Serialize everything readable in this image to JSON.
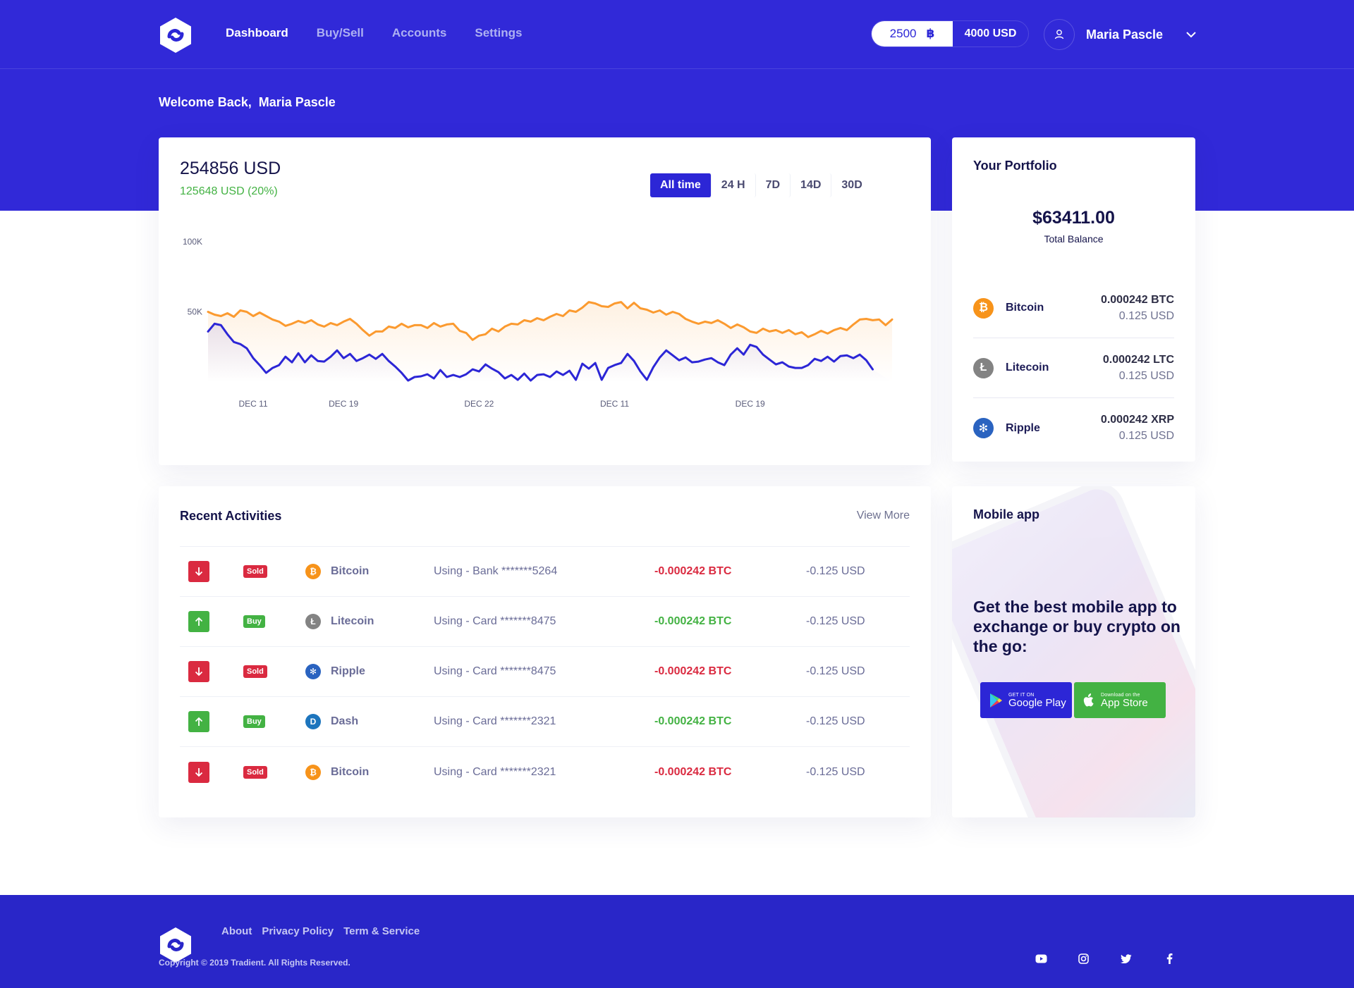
{
  "nav": {
    "items": [
      {
        "label": "Dashboard",
        "active": true
      },
      {
        "label": "Buy/Sell"
      },
      {
        "label": "Accounts"
      },
      {
        "label": "Settings"
      }
    ]
  },
  "balance": {
    "amount": "2500",
    "currency_symbol": "฿",
    "usd": "4000 USD"
  },
  "user": {
    "name": "Maria Pascle"
  },
  "welcome": {
    "greeting": "Welcome Back,",
    "name": "Maria Pascle"
  },
  "chart_card": {
    "total": "254856 USD",
    "change": "125648 USD (20%)",
    "ranges": [
      "All time",
      "24 H",
      "7D",
      "14D",
      "30D"
    ],
    "active_range": "All time"
  },
  "chart_data": {
    "type": "area",
    "yticks": [
      "100K",
      "50K"
    ],
    "ytick_values": [
      100000,
      50000
    ],
    "ylim": [
      0,
      100000
    ],
    "xticks": [
      "DEC 11",
      "DEC 19",
      "DEC 22",
      "DEC 11",
      "DEC 19"
    ],
    "xtick_index": [
      7,
      21,
      42,
      63,
      84
    ],
    "series": [
      {
        "color": "#fb9a2f",
        "fill": true,
        "values": [
          50000,
          48000,
          47000,
          49000,
          46500,
          51000,
          50000,
          47000,
          49500,
          47000,
          44500,
          43000,
          40000,
          41500,
          43500,
          42000,
          44000,
          41000,
          39500,
          42000,
          40500,
          43000,
          45000,
          41500,
          37000,
          33000,
          36000,
          36000,
          39500,
          38500,
          41500,
          39000,
          40500,
          40500,
          38500,
          42000,
          39500,
          41000,
          41500,
          36500,
          35000,
          30000,
          33000,
          34000,
          38000,
          36000,
          39500,
          41500,
          41000,
          44000,
          43000,
          45500,
          44000,
          46500,
          48500,
          47000,
          51000,
          50000,
          53000,
          57000,
          56000,
          54000,
          53500,
          56000,
          57000,
          52500,
          56500,
          52500,
          51500,
          49500,
          51000,
          48000,
          50000,
          48500,
          45000,
          43000,
          41500,
          43000,
          42000,
          44000,
          41500,
          38500,
          41000,
          39000,
          36000,
          35000,
          38000,
          36000,
          37000,
          35000,
          37000,
          34000,
          35500,
          32000,
          34000,
          36500,
          34500,
          37000,
          38500,
          37000,
          41000,
          44500,
          45000,
          44000,
          44500,
          40500,
          44500
        ]
      },
      {
        "color": "#2c26d6",
        "fill": true,
        "values": [
          36000,
          41500,
          40500,
          34000,
          28500,
          27000,
          24000,
          17000,
          12000,
          6500,
          10000,
          12000,
          18000,
          14000,
          20500,
          14000,
          19000,
          15000,
          14500,
          18000,
          22500,
          17000,
          20000,
          15000,
          17000,
          19500,
          16500,
          20000,
          15000,
          11000,
          6500,
          1000,
          3500,
          4000,
          5500,
          2500,
          8500,
          3500,
          5000,
          3500,
          5500,
          9000,
          7500,
          12500,
          9500,
          7000,
          2500,
          5000,
          1500,
          6000,
          1000,
          5000,
          5500,
          3500,
          7500,
          5000,
          8000,
          1500,
          13000,
          9500,
          13500,
          1500,
          10000,
          12000,
          13500,
          20000,
          15000,
          7500,
          1500,
          10500,
          17500,
          22500,
          19000,
          15500,
          17500,
          14000,
          14500,
          16000,
          17000,
          14000,
          12000,
          19500,
          24000,
          19500,
          26500,
          25000,
          19500,
          16000,
          12500,
          14000,
          11000,
          10000,
          10000,
          12000,
          16500,
          15000,
          18000,
          14500,
          18500,
          19000,
          17000,
          19500,
          15500,
          9000
        ]
      }
    ]
  },
  "portfolio": {
    "title": "Your Portfolio",
    "balance": "$63411.00",
    "balance_label": "Total Balance",
    "assets": [
      {
        "name": "Bitcoin",
        "amount": "0.000242 BTC",
        "usd": "0.125 USD",
        "icon": "bitcoin-icon",
        "color": "#f7931a",
        "glyph": "₿"
      },
      {
        "name": "Litecoin",
        "amount": "0.000242 LTC",
        "usd": "0.125 USD",
        "icon": "litecoin-icon",
        "color": "#838383",
        "glyph": "Ł"
      },
      {
        "name": "Ripple",
        "amount": "0.000242 XRP",
        "usd": "0.125 USD",
        "icon": "ripple-icon",
        "color": "#2a63c0",
        "glyph": "✻"
      }
    ]
  },
  "activities": {
    "title": "Recent Activities",
    "view_more": "View More",
    "rows": [
      {
        "direction": "down",
        "type": "Sold",
        "coin": "Bitcoin",
        "via": "Using - Bank *******5264",
        "amount": "-0.000242 BTC",
        "usd": "-0.125 USD",
        "coin_color": "#f7931a",
        "glyph": "₿",
        "amount_color": "red"
      },
      {
        "direction": "up",
        "type": "Buy",
        "coin": "Litecoin",
        "via": "Using - Card *******8475",
        "amount": "-0.000242 BTC",
        "usd": "-0.125 USD",
        "coin_color": "#838383",
        "glyph": "Ł",
        "amount_color": "green"
      },
      {
        "direction": "down",
        "type": "Sold",
        "coin": "Ripple",
        "via": "Using - Card *******8475",
        "amount": "-0.000242 BTC",
        "usd": "-0.125 USD",
        "coin_color": "#2a63c0",
        "glyph": "✻",
        "amount_color": "red"
      },
      {
        "direction": "up",
        "type": "Buy",
        "coin": "Dash",
        "via": "Using - Card *******2321",
        "amount": "-0.000242 BTC",
        "usd": "-0.125 USD",
        "coin_color": "#1d75bd",
        "glyph": "D",
        "amount_color": "green"
      },
      {
        "direction": "down",
        "type": "Sold",
        "coin": "Bitcoin",
        "via": "Using - Card *******2321",
        "amount": "-0.000242 BTC",
        "usd": "-0.125 USD",
        "coin_color": "#f7931a",
        "glyph": "₿",
        "amount_color": "red"
      }
    ]
  },
  "mobile": {
    "title": "Mobile app",
    "text": "Get the best mobile app to exchange or buy crypto on the go:",
    "google_small": "GET IT ON",
    "google_big": "Google Play",
    "apple_small": "Download on the",
    "apple_big": "App Store"
  },
  "footer": {
    "links": [
      "About",
      "Privacy Policy",
      "Term & Service"
    ],
    "copyright": "Copyright © 2019 Tradient. All Rights Reserved.",
    "social": [
      "youtube-icon",
      "instagram-icon",
      "twitter-icon",
      "facebook-icon"
    ]
  },
  "colors": {
    "primary": "#2c26d6",
    "hero": "#3129d8",
    "footer": "#2926c8",
    "green": "#43b243",
    "red": "#da2a40",
    "orange": "#fb9a2f"
  }
}
